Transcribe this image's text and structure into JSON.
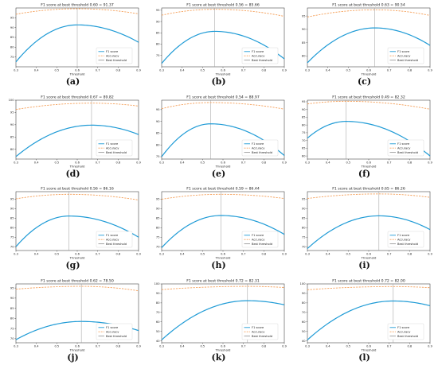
{
  "colors": {
    "f1": "#1f9bd6",
    "accuracy": "#f5a05a",
    "best": "#9a9a9a",
    "axis": "#222222"
  },
  "legend": [
    "F1 score",
    "Accuracy",
    "Best threshold"
  ],
  "xlabel": "Threshold",
  "xticks": [
    "0.3",
    "0.4",
    "0.5",
    "0.6",
    "0.7",
    "0.8",
    "0.9"
  ],
  "chart_data": [
    {
      "type": "line",
      "label": "(a)",
      "title": "F1 score at best threshold 0.60 = 91.37",
      "best": 0.6,
      "xlim": [
        0.3,
        0.9
      ],
      "ylim": [
        70,
        100
      ],
      "yticks": [
        "75",
        "80",
        "85",
        "90",
        "95"
      ],
      "f1": {
        "start": 72.5,
        "peak": 91.37,
        "end": 82.5
      },
      "accuracy": {
        "start": 96.8,
        "peak": 99.6,
        "end": 97.0
      }
    },
    {
      "type": "line",
      "label": "(b)",
      "title": "F1 score at best threshold 0.56 = 85.66",
      "best": 0.56,
      "xlim": [
        0.3,
        0.9
      ],
      "ylim": [
        70,
        96
      ],
      "yticks": [
        "75",
        "80",
        "85",
        "90",
        "95"
      ],
      "f1": {
        "start": 71.5,
        "peak": 85.66,
        "end": 73.5
      },
      "accuracy": {
        "start": 92.8,
        "peak": 95.4,
        "end": 92.3
      }
    },
    {
      "type": "line",
      "label": "(c)",
      "title": "F1 score at best threshold 0.63 = 90.54",
      "best": 0.63,
      "xlim": [
        0.3,
        0.9
      ],
      "ylim": [
        76,
        98
      ],
      "yticks": [
        "80",
        "85",
        "90",
        "95"
      ],
      "f1": {
        "start": 77.5,
        "peak": 90.54,
        "end": 84.0
      },
      "accuracy": {
        "start": 94.6,
        "peak": 97.3,
        "end": 95.2
      }
    },
    {
      "type": "line",
      "label": "(d)",
      "title": "F1 score at best threshold 0.67 = 89.82",
      "best": 0.67,
      "xlim": [
        0.3,
        0.9
      ],
      "ylim": [
        76,
        100
      ],
      "yticks": [
        "80",
        "85",
        "90",
        "95",
        "100"
      ],
      "f1": {
        "start": 77.0,
        "peak": 89.82,
        "end": 86.0
      },
      "accuracy": {
        "start": 96.2,
        "peak": 98.8,
        "end": 97.6
      }
    },
    {
      "type": "line",
      "label": "(e)",
      "title": "F1 score at best threshold 0.54 = 88.97",
      "best": 0.54,
      "xlim": [
        0.3,
        0.9
      ],
      "ylim": [
        74,
        99
      ],
      "yticks": [
        "75",
        "80",
        "85",
        "90",
        "95"
      ],
      "f1": {
        "start": 75.0,
        "peak": 88.97,
        "end": 75.5
      },
      "accuracy": {
        "start": 95.4,
        "peak": 98.0,
        "end": 95.2
      }
    },
    {
      "type": "line",
      "label": "(f)",
      "title": "F1 score at best threshold 0.49 = 82.32",
      "best": 0.49,
      "xlim": [
        0.3,
        0.9
      ],
      "ylim": [
        58,
        96
      ],
      "yticks": [
        "60",
        "65",
        "70",
        "75",
        "80",
        "85",
        "90",
        "95"
      ],
      "f1": {
        "start": 71.5,
        "peak": 82.32,
        "end": 60.0
      },
      "accuracy": {
        "start": 93.6,
        "peak": 95.3,
        "end": 90.2
      }
    },
    {
      "type": "line",
      "label": "(g)",
      "title": "F1 score at best threshold 0.56 = 86.16",
      "best": 0.56,
      "xlim": [
        0.3,
        0.9
      ],
      "ylim": [
        68,
        99
      ],
      "yticks": [
        "70",
        "75",
        "80",
        "85",
        "90",
        "95"
      ],
      "f1": {
        "start": 70.0,
        "peak": 86.16,
        "end": 75.0
      },
      "accuracy": {
        "start": 95.2,
        "peak": 97.6,
        "end": 94.6
      }
    },
    {
      "type": "line",
      "label": "(h)",
      "title": "F1 score at best threshold 0.59 = 86.44",
      "best": 0.59,
      "xlim": [
        0.3,
        0.9
      ],
      "ylim": [
        68,
        99
      ],
      "yticks": [
        "70",
        "75",
        "80",
        "85",
        "90",
        "95"
      ],
      "f1": {
        "start": 69.5,
        "peak": 86.44,
        "end": 76.5
      },
      "accuracy": {
        "start": 95.0,
        "peak": 97.6,
        "end": 95.4
      }
    },
    {
      "type": "line",
      "label": "(i)",
      "title": "F1 score at best threshold 0.65 = 86.26",
      "best": 0.65,
      "xlim": [
        0.3,
        0.9
      ],
      "ylim": [
        68,
        99
      ],
      "yticks": [
        "70",
        "75",
        "80",
        "85",
        "90",
        "95"
      ],
      "f1": {
        "start": 69.0,
        "peak": 86.26,
        "end": 79.0
      },
      "accuracy": {
        "start": 95.4,
        "peak": 97.8,
        "end": 96.0
      }
    },
    {
      "type": "line",
      "label": "(j)",
      "title": "F1 score at best threshold 0.62 = 78.50",
      "best": 0.62,
      "xlim": [
        0.3,
        0.9
      ],
      "ylim": [
        68,
        97
      ],
      "yticks": [
        "70",
        "75",
        "80",
        "85",
        "90",
        "95"
      ],
      "f1": {
        "start": 69.5,
        "peak": 78.5,
        "end": 74.0
      },
      "accuracy": {
        "start": 94.4,
        "peak": 95.8,
        "end": 93.6
      }
    },
    {
      "type": "line",
      "label": "(k)",
      "title": "F1 score at best threshold 0.72 = 82.31",
      "best": 0.72,
      "xlim": [
        0.3,
        0.9
      ],
      "ylim": [
        38,
        100
      ],
      "yticks": [
        "40",
        "50",
        "60",
        "70",
        "80",
        "90",
        "100"
      ],
      "f1": {
        "start": 41.0,
        "peak": 82.31,
        "end": 78.0
      },
      "accuracy": {
        "start": 94.0,
        "peak": 97.4,
        "end": 96.2
      }
    },
    {
      "type": "line",
      "label": "(l)",
      "title": "F1 score at best threshold 0.72 = 82.00",
      "best": 0.72,
      "xlim": [
        0.3,
        0.9
      ],
      "ylim": [
        38,
        100
      ],
      "yticks": [
        "40",
        "50",
        "60",
        "70",
        "80",
        "90",
        "100"
      ],
      "f1": {
        "start": 41.0,
        "peak": 82.0,
        "end": 77.0
      },
      "accuracy": {
        "start": 93.8,
        "peak": 97.2,
        "end": 96.0
      }
    }
  ]
}
